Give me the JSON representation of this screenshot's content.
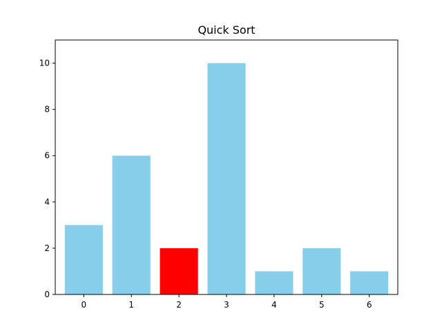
{
  "chart_data": {
    "type": "bar",
    "title": "Quick Sort",
    "xlabel": "",
    "ylabel": "",
    "categories": [
      "0",
      "1",
      "2",
      "3",
      "4",
      "5",
      "6"
    ],
    "values": [
      3,
      6,
      2,
      10,
      1,
      2,
      1
    ],
    "bar_colors": [
      "#87CEEB",
      "#87CEEB",
      "#FF0000",
      "#87CEEB",
      "#87CEEB",
      "#87CEEB",
      "#87CEEB"
    ],
    "highlight_index": 2,
    "ylim": [
      0,
      11
    ],
    "xlim": [
      -0.6,
      6.6
    ],
    "yticks": [
      0,
      2,
      4,
      6,
      8,
      10
    ],
    "grid": false,
    "legend": "none"
  }
}
